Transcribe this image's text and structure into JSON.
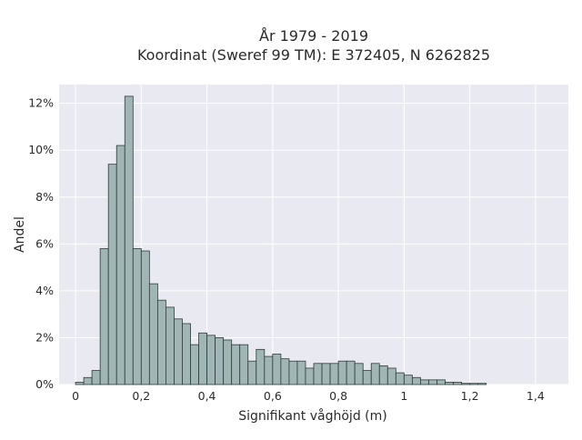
{
  "chart_data": {
    "type": "bar",
    "title": [
      "År 1979 - 2019",
      "Koordinat (Sweref 99 TM): E 372405, N 6262825"
    ],
    "xlabel": "Signifikant våghöjd (m)",
    "ylabel": "Andel",
    "xlim": [
      -0.05,
      1.5
    ],
    "ylim": [
      0,
      12.8
    ],
    "x_ticks": [
      {
        "value": 0,
        "label": "0"
      },
      {
        "value": 0.2,
        "label": "0,2"
      },
      {
        "value": 0.4,
        "label": "0,4"
      },
      {
        "value": 0.6,
        "label": "0,6"
      },
      {
        "value": 0.8,
        "label": "0,8"
      },
      {
        "value": 1.0,
        "label": "1"
      },
      {
        "value": 1.2,
        "label": "1,2"
      },
      {
        "value": 1.4,
        "label": "1,4"
      }
    ],
    "y_ticks": [
      {
        "value": 0,
        "label": "0%"
      },
      {
        "value": 2,
        "label": "2%"
      },
      {
        "value": 4,
        "label": "4%"
      },
      {
        "value": 6,
        "label": "6%"
      },
      {
        "value": 8,
        "label": "8%"
      },
      {
        "value": 10,
        "label": "10%"
      },
      {
        "value": 12,
        "label": "12%"
      }
    ],
    "grid": true,
    "bin_width": 0.025,
    "bin_start": 0,
    "values": [
      0.1,
      0.3,
      0.6,
      5.8,
      9.4,
      10.2,
      12.3,
      5.8,
      5.7,
      4.3,
      3.6,
      3.3,
      2.8,
      2.6,
      1.7,
      2.2,
      2.1,
      2.0,
      1.9,
      1.7,
      1.7,
      1.0,
      1.5,
      1.2,
      1.3,
      1.1,
      1.0,
      1.0,
      0.7,
      0.9,
      0.9,
      0.9,
      1.0,
      1.0,
      0.9,
      0.6,
      0.9,
      0.8,
      0.7,
      0.5,
      0.4,
      0.3,
      0.2,
      0.2,
      0.2,
      0.1,
      0.1,
      0.05,
      0.05,
      0.05
    ],
    "colors": {
      "plot_bg": "#e9e9f2",
      "grid": "#ffffff",
      "bar_fill": "#9fb6b5",
      "bar_edge": "#2f3b3a"
    }
  }
}
